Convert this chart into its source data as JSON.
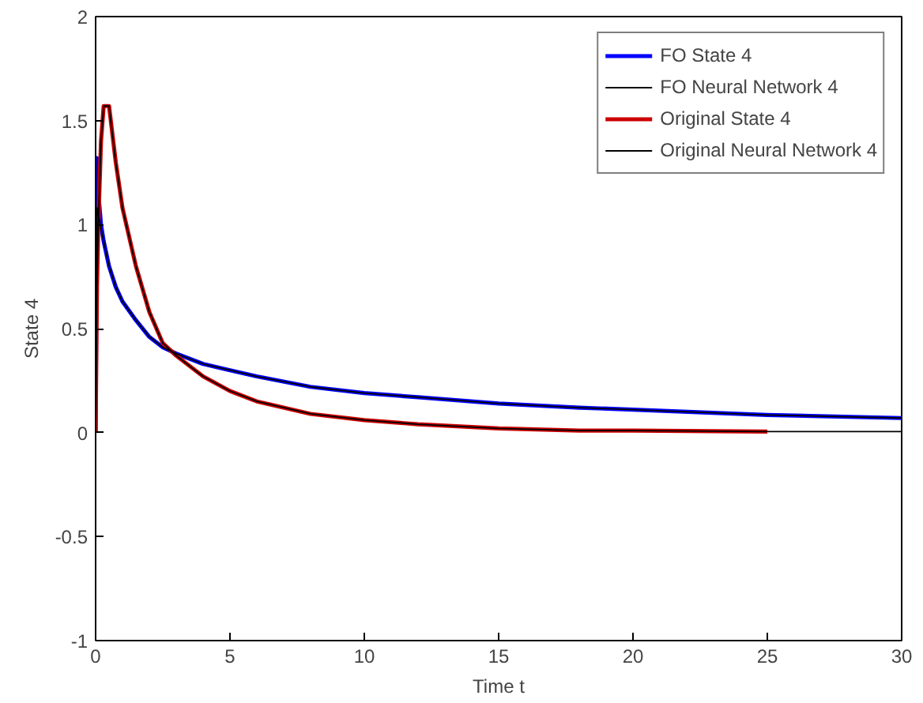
{
  "chart_data": {
    "type": "line",
    "xlabel": "Time t",
    "ylabel": "State 4",
    "xlim": [
      0,
      30
    ],
    "ylim": [
      -1,
      2
    ],
    "xticks": [
      0,
      5,
      10,
      15,
      20,
      25,
      30
    ],
    "yticks": [
      -1,
      -0.5,
      0,
      0.5,
      1,
      1.5,
      2
    ],
    "grid": false,
    "legend": "top right",
    "series": [
      {
        "name": "FO State 4",
        "color": "#0000ff",
        "x": [
          0,
          0.05,
          0.1,
          0.2,
          0.3,
          0.5,
          0.75,
          1,
          1.5,
          2,
          2.5,
          3,
          4,
          5,
          6,
          8,
          10,
          12,
          15,
          18,
          20,
          25,
          30
        ],
        "values": [
          0,
          1.32,
          1.15,
          1.0,
          0.92,
          0.8,
          0.7,
          0.63,
          0.54,
          0.46,
          0.41,
          0.38,
          0.33,
          0.3,
          0.27,
          0.22,
          0.19,
          0.17,
          0.14,
          0.12,
          0.11,
          0.085,
          0.07
        ]
      },
      {
        "name": "FO Neural Network 4",
        "color": "#000000",
        "x": [
          0,
          0.05,
          0.1,
          0.2,
          0.3,
          0.5,
          0.75,
          1,
          1.5,
          2,
          2.5,
          3,
          4,
          5,
          6,
          8,
          10,
          12,
          15,
          18,
          20,
          25,
          30
        ],
        "values": [
          0,
          1.08,
          1.05,
          0.98,
          0.92,
          0.8,
          0.7,
          0.63,
          0.54,
          0.46,
          0.41,
          0.38,
          0.33,
          0.3,
          0.27,
          0.22,
          0.19,
          0.17,
          0.14,
          0.12,
          0.11,
          0.085,
          0.07
        ]
      },
      {
        "name": "Original State 4",
        "color": "#cc0000",
        "x": [
          0,
          0.05,
          0.1,
          0.2,
          0.3,
          0.5,
          0.75,
          1,
          1.5,
          2,
          2.5,
          3,
          4,
          5,
          6,
          8,
          10,
          12,
          15,
          18,
          20,
          25
        ],
        "values": [
          0,
          0.7,
          1.0,
          1.4,
          1.57,
          1.57,
          1.3,
          1.08,
          0.8,
          0.58,
          0.43,
          0.37,
          0.27,
          0.2,
          0.15,
          0.09,
          0.06,
          0.04,
          0.02,
          0.01,
          0.01,
          0.005
        ]
      },
      {
        "name": "Original Neural Network 4",
        "color": "#000000",
        "x": [
          0,
          0.05,
          0.1,
          0.2,
          0.3,
          0.5,
          0.75,
          1,
          1.5,
          2,
          2.5,
          3,
          4,
          5,
          6,
          8,
          10,
          12,
          15,
          18,
          20,
          25,
          30
        ],
        "values": [
          0,
          0.7,
          1.0,
          1.4,
          1.57,
          1.57,
          1.3,
          1.08,
          0.8,
          0.58,
          0.43,
          0.37,
          0.27,
          0.2,
          0.15,
          0.09,
          0.06,
          0.04,
          0.02,
          0.01,
          0.01,
          0.005,
          0.005
        ]
      }
    ]
  }
}
